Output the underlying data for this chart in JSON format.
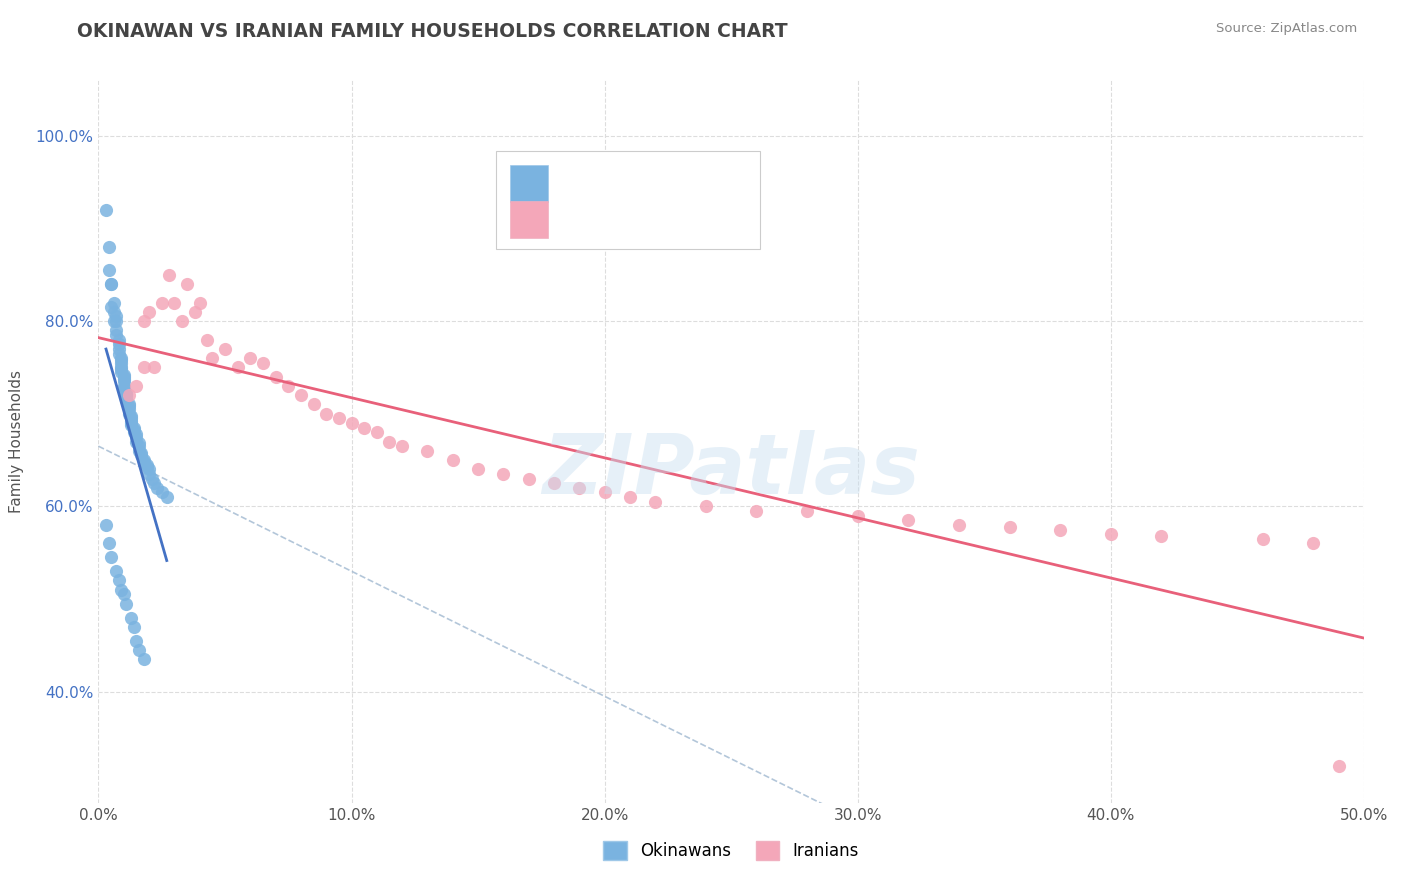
{
  "title": "OKINAWAN VS IRANIAN FAMILY HOUSEHOLDS CORRELATION CHART",
  "source_text": "Source: ZipAtlas.com",
  "ylabel": "Family Households",
  "xlim": [
    0.0,
    0.5
  ],
  "ylim": [
    0.28,
    1.06
  ],
  "xtick_labels": [
    "0.0%",
    "10.0%",
    "20.0%",
    "30.0%",
    "40.0%",
    "50.0%"
  ],
  "xtick_vals": [
    0.0,
    0.1,
    0.2,
    0.3,
    0.4,
    0.5
  ],
  "ytick_labels": [
    "40.0%",
    "60.0%",
    "80.0%",
    "100.0%"
  ],
  "ytick_vals": [
    0.4,
    0.6,
    0.8,
    1.0
  ],
  "okinawan_color": "#7ab3e0",
  "iranian_color": "#f4a7b9",
  "okinawan_line_color": "#4472c4",
  "iranian_line_color": "#e8607a",
  "dashed_line_color": "#a0b8d0",
  "title_color": "#444444",
  "source_color": "#888888",
  "background_color": "#ffffff",
  "okinawan_x": [
    0.003,
    0.004,
    0.004,
    0.005,
    0.005,
    0.005,
    0.006,
    0.006,
    0.006,
    0.007,
    0.007,
    0.007,
    0.007,
    0.008,
    0.008,
    0.008,
    0.008,
    0.009,
    0.009,
    0.009,
    0.009,
    0.009,
    0.009,
    0.01,
    0.01,
    0.01,
    0.01,
    0.01,
    0.01,
    0.01,
    0.011,
    0.011,
    0.011,
    0.011,
    0.012,
    0.012,
    0.012,
    0.012,
    0.013,
    0.013,
    0.013,
    0.013,
    0.013,
    0.014,
    0.014,
    0.014,
    0.015,
    0.015,
    0.015,
    0.016,
    0.016,
    0.016,
    0.017,
    0.017,
    0.018,
    0.018,
    0.019,
    0.019,
    0.02,
    0.02,
    0.021,
    0.022,
    0.023,
    0.025,
    0.027,
    0.003,
    0.004,
    0.005,
    0.007,
    0.008,
    0.009,
    0.01,
    0.011,
    0.013,
    0.014,
    0.015,
    0.016,
    0.018
  ],
  "okinawan_y": [
    0.92,
    0.88,
    0.855,
    0.84,
    0.84,
    0.815,
    0.82,
    0.81,
    0.8,
    0.805,
    0.8,
    0.79,
    0.785,
    0.78,
    0.775,
    0.77,
    0.765,
    0.76,
    0.758,
    0.755,
    0.75,
    0.748,
    0.745,
    0.742,
    0.74,
    0.738,
    0.735,
    0.73,
    0.728,
    0.725,
    0.722,
    0.72,
    0.718,
    0.715,
    0.71,
    0.708,
    0.705,
    0.7,
    0.698,
    0.695,
    0.692,
    0.69,
    0.688,
    0.685,
    0.682,
    0.68,
    0.678,
    0.675,
    0.67,
    0.668,
    0.665,
    0.66,
    0.658,
    0.655,
    0.65,
    0.648,
    0.645,
    0.642,
    0.64,
    0.635,
    0.63,
    0.625,
    0.62,
    0.615,
    0.61,
    0.58,
    0.56,
    0.545,
    0.53,
    0.52,
    0.51,
    0.505,
    0.495,
    0.48,
    0.47,
    0.455,
    0.445,
    0.435
  ],
  "iranian_x": [
    0.012,
    0.015,
    0.018,
    0.018,
    0.02,
    0.022,
    0.025,
    0.028,
    0.03,
    0.033,
    0.035,
    0.038,
    0.04,
    0.043,
    0.045,
    0.05,
    0.055,
    0.06,
    0.065,
    0.07,
    0.075,
    0.08,
    0.085,
    0.09,
    0.095,
    0.1,
    0.105,
    0.11,
    0.115,
    0.12,
    0.13,
    0.14,
    0.15,
    0.16,
    0.17,
    0.18,
    0.19,
    0.2,
    0.21,
    0.22,
    0.24,
    0.26,
    0.28,
    0.3,
    0.32,
    0.34,
    0.36,
    0.38,
    0.4,
    0.42,
    0.46,
    0.48,
    0.49
  ],
  "iranian_y": [
    0.72,
    0.73,
    0.75,
    0.8,
    0.81,
    0.75,
    0.82,
    0.85,
    0.82,
    0.8,
    0.84,
    0.81,
    0.82,
    0.78,
    0.76,
    0.77,
    0.75,
    0.76,
    0.755,
    0.74,
    0.73,
    0.72,
    0.71,
    0.7,
    0.695,
    0.69,
    0.685,
    0.68,
    0.67,
    0.665,
    0.66,
    0.65,
    0.64,
    0.635,
    0.63,
    0.625,
    0.62,
    0.615,
    0.61,
    0.605,
    0.6,
    0.595,
    0.595,
    0.59,
    0.585,
    0.58,
    0.578,
    0.575,
    0.57,
    0.568,
    0.565,
    0.56,
    0.32
  ],
  "legend_label_okinawan": "Okinawans",
  "legend_label_iranian": "Iranians"
}
